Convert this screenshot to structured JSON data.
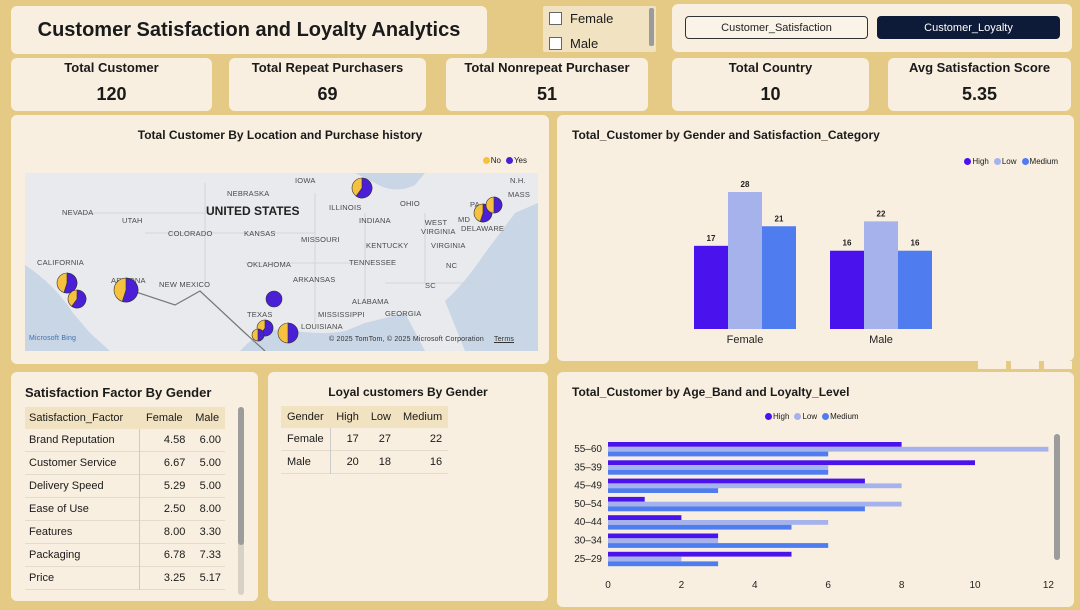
{
  "title": "Customer Satisfaction and Loyalty Analytics",
  "slicer": {
    "items": [
      "Female",
      "Male"
    ]
  },
  "buttons": {
    "satisfaction": "Customer_Satisfaction",
    "loyalty": "Customer_Loyalty"
  },
  "kpis": [
    {
      "label": "Total Customer",
      "value": "120"
    },
    {
      "label": "Total Repeat Purchasers",
      "value": "69"
    },
    {
      "label": "Total Nonrepeat Purchaser",
      "value": "51"
    },
    {
      "label": "Total Country",
      "value": "10"
    },
    {
      "label": "Avg Satisfaction Score",
      "value": "5.35"
    }
  ],
  "map": {
    "title": "Total Customer By Location and Purchase history",
    "legend": [
      {
        "name": "No",
        "color": "#f5c13f"
      },
      {
        "name": "Yes",
        "color": "#4b1fd6"
      }
    ],
    "country_label": "UNITED STATES",
    "labels": [
      "IOWA",
      "NEBRASKA",
      "NEVADA",
      "UTAH",
      "COLORADO",
      "KANSAS",
      "MISSOURI",
      "ILLINOIS",
      "INDIANA",
      "OHIO",
      "WEST VIRGINIA",
      "VIRGINIA",
      "KENTUCKY",
      "TENNESSEE",
      "OKLAHOMA",
      "ARKANSAS",
      "ALABAMA",
      "GEORGIA",
      "SC",
      "NC",
      "TEXAS",
      "LOUISIANA",
      "MISSISSIPPI",
      "NEW MEXICO",
      "ARIZONA",
      "CALIFORNIA",
      "N.H.",
      "MASS",
      "PA",
      "MD",
      "DELAWARE"
    ],
    "attribution": "© 2025 TomTom, © 2025 Microsoft Corporation",
    "terms": "Terms",
    "brand": "Microsoft Bing"
  },
  "chart_data": [
    {
      "type": "bar",
      "title": "Total_Customer by Gender and Satisfaction_Category",
      "categories": [
        "Female",
        "Male"
      ],
      "series": [
        {
          "name": "High",
          "color": "#4a12ec",
          "values": [
            17,
            16
          ]
        },
        {
          "name": "Low",
          "color": "#a6b2ec",
          "values": [
            28,
            22
          ]
        },
        {
          "name": "Medium",
          "color": "#4f7df0",
          "values": [
            21,
            16
          ]
        }
      ],
      "data_labels": true,
      "legend": "top-right"
    },
    {
      "type": "bar",
      "orientation": "horizontal",
      "title": "Total_Customer by Age_Band and Loyalty_Level",
      "categories": [
        "55–60",
        "35–39",
        "45–49",
        "50–54",
        "40–44",
        "30–34",
        "25–29"
      ],
      "series": [
        {
          "name": "High",
          "color": "#4a12ec",
          "values": [
            8,
            10,
            7,
            1,
            2,
            3,
            5
          ]
        },
        {
          "name": "Low",
          "color": "#a6b2ec",
          "values": [
            12,
            6,
            8,
            8,
            6,
            3,
            2
          ]
        },
        {
          "name": "Medium",
          "color": "#4f7df0",
          "values": [
            6,
            6,
            3,
            7,
            5,
            6,
            3
          ]
        }
      ],
      "xlim": [
        0,
        12
      ],
      "xticks": [
        "0",
        "2",
        "4",
        "6",
        "8",
        "10",
        "12"
      ],
      "legend": "top-left"
    }
  ],
  "satisfaction_table": {
    "title": "Satisfaction Factor By Gender",
    "headers": [
      "Satisfaction_Factor",
      "Female",
      "Male"
    ],
    "rows": [
      [
        "Brand Reputation",
        "4.58",
        "6.00"
      ],
      [
        "Customer Service",
        "6.67",
        "5.00"
      ],
      [
        "Delivery Speed",
        "5.29",
        "5.00"
      ],
      [
        "Ease of Use",
        "2.50",
        "8.00"
      ],
      [
        "Features",
        "8.00",
        "3.30"
      ],
      [
        "Packaging",
        "6.78",
        "7.33"
      ],
      [
        "Price",
        "3.25",
        "5.17"
      ]
    ]
  },
  "loyal_table": {
    "title": "Loyal customers By Gender",
    "headers": [
      "Gender",
      "High",
      "Low",
      "Medium"
    ],
    "rows": [
      [
        "Female",
        "17",
        "27",
        "22"
      ],
      [
        "Male",
        "20",
        "18",
        "16"
      ]
    ]
  }
}
